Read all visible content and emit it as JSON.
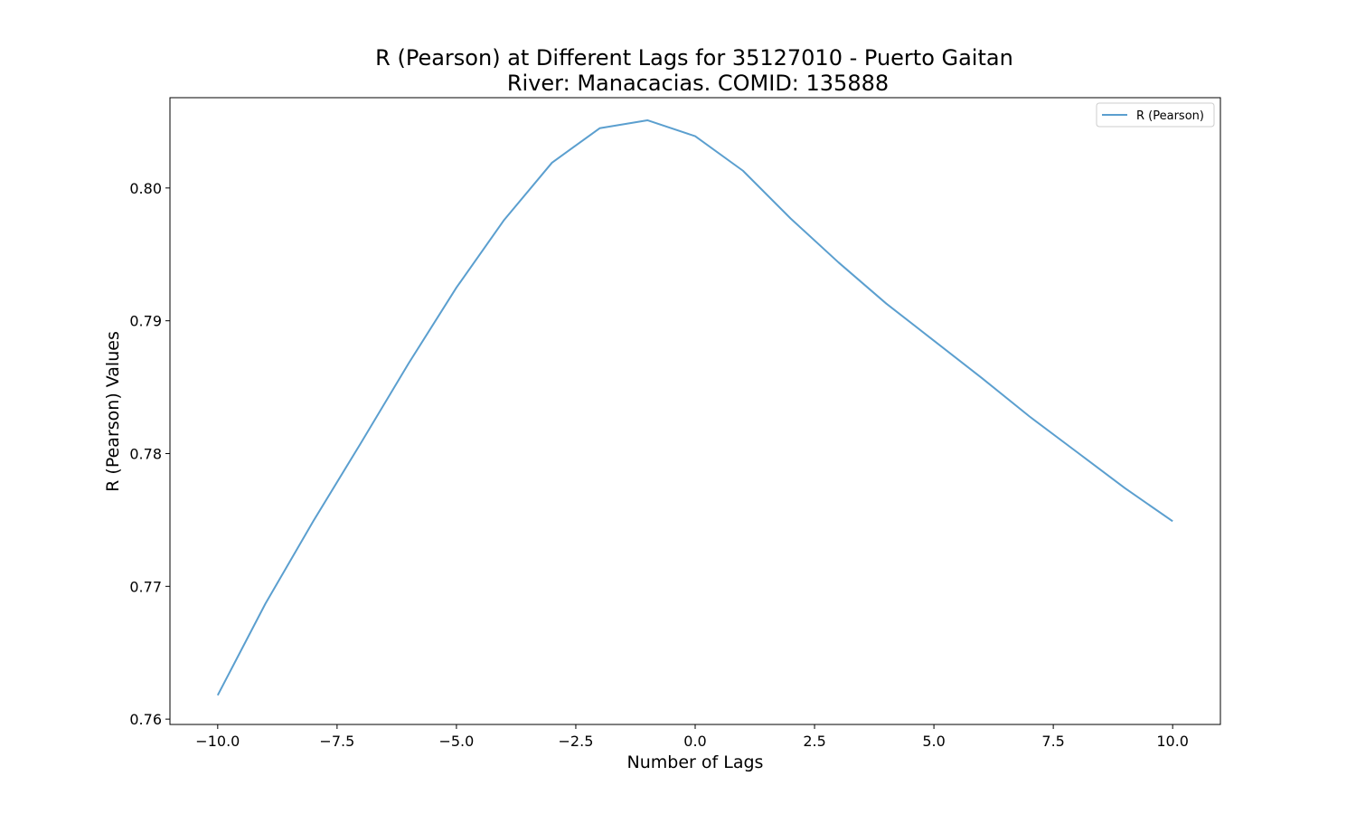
{
  "chart_data": {
    "type": "line",
    "title": "R (Pearson) at Different Lags for 35127010 - Puerto Gaitan",
    "subtitle": "River: Manacacias. COMID: 135888",
    "xlabel": "Number of Lags",
    "ylabel": "R (Pearson) Values",
    "xlim": [
      -11.0,
      11.0
    ],
    "ylim": [
      0.7596,
      0.8068
    ],
    "x_ticks": [
      -10.0,
      -7.5,
      -5.0,
      -2.5,
      0.0,
      2.5,
      5.0,
      7.5,
      10.0
    ],
    "x_tick_labels": [
      "−10.0",
      "−7.5",
      "−5.0",
      "−2.5",
      "0.0",
      "2.5",
      "5.0",
      "7.5",
      "10.0"
    ],
    "y_ticks": [
      0.76,
      0.77,
      0.78,
      0.79,
      0.8
    ],
    "y_tick_labels": [
      "0.76",
      "0.77",
      "0.78",
      "0.79",
      "0.80"
    ],
    "grid": false,
    "legend_position": "top-right",
    "series": [
      {
        "name": "R (Pearson)",
        "color": "#5b9fcf",
        "x": [
          -10,
          -9,
          -8,
          -7,
          -6,
          -5,
          -4,
          -3,
          -2,
          -1,
          0,
          1,
          2,
          3,
          4,
          5,
          6,
          7,
          8,
          9,
          10
        ],
        "values": [
          0.7618,
          0.7687,
          0.7749,
          0.7808,
          0.7868,
          0.7925,
          0.7976,
          0.8019,
          0.8045,
          0.8051,
          0.8039,
          0.8013,
          0.7977,
          0.7944,
          0.7913,
          0.7885,
          0.7857,
          0.7828,
          0.7801,
          0.7774,
          0.7749
        ]
      }
    ]
  }
}
